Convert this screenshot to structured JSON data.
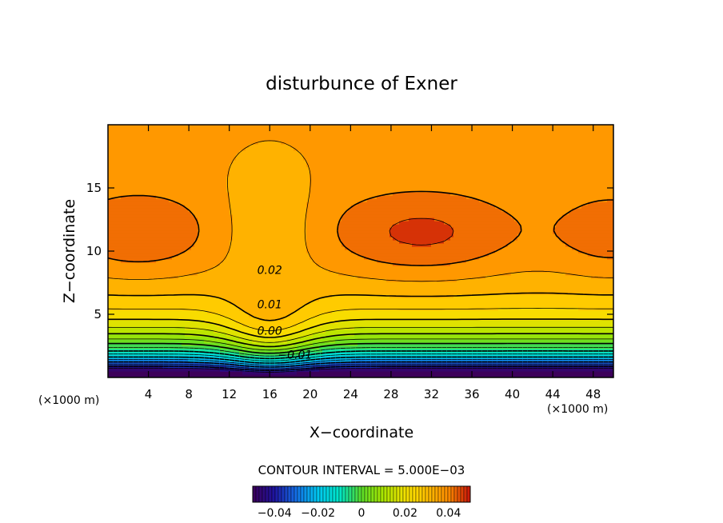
{
  "chart_data": {
    "type": "contour",
    "title": "disturbunce of Exner",
    "xlabel": "X−coordinate",
    "ylabel": "Z−coordinate",
    "x_unit": "(×1000 m)",
    "y_unit": "(×1000 m)",
    "xlim": [
      0,
      50
    ],
    "ylim": [
      0,
      20
    ],
    "x_ticks": [
      4,
      8,
      12,
      16,
      20,
      24,
      28,
      32,
      36,
      40,
      44,
      48
    ],
    "y_ticks": [
      5,
      10,
      15
    ],
    "contour_labels": [
      {
        "text": "0.02",
        "x": 16,
        "z": 8.5
      },
      {
        "text": "0.01",
        "x": 16,
        "z": 5.8
      },
      {
        "text": "0.00",
        "x": 16,
        "z": 3.7
      },
      {
        "text": "−0.01",
        "x": 18.5,
        "z": 1.8
      }
    ],
    "contour_interval_text": "CONTOUR INTERVAL = 5.000E−03",
    "colorbar": {
      "range": [
        -0.05,
        0.05
      ],
      "tick_labels": [
        "−0.04",
        "−0.02",
        "0",
        "0.02",
        "0.04"
      ],
      "tick_values": [
        -0.04,
        -0.02,
        0,
        0.02,
        0.04
      ]
    },
    "grid": false
  }
}
